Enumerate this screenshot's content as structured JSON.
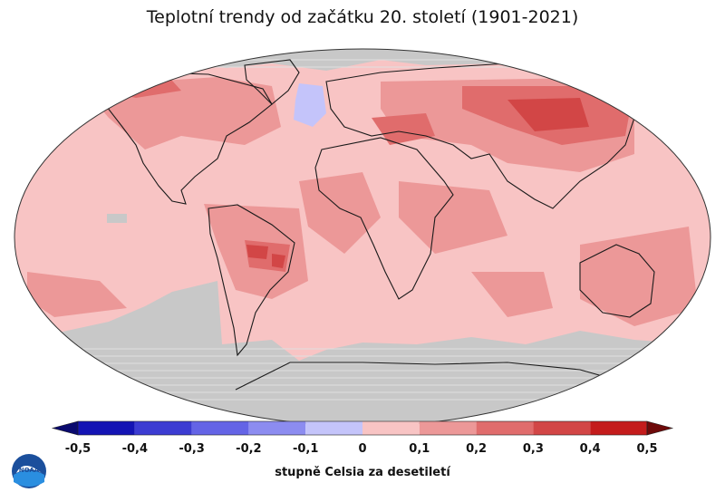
{
  "title": "Teplotní trendy od začátku 20. století (1901-2021)",
  "legend": {
    "unit_label": "stupně Celsia za desetiletí",
    "ticks": [
      "-0,5",
      "-0,4",
      "-0,3",
      "-0,2",
      "-0,1",
      "0",
      "0,1",
      "0,2",
      "0,3",
      "0,4",
      "0,5"
    ],
    "colors": [
      "#1414b4",
      "#3c3cd2",
      "#6464e6",
      "#8c8cf0",
      "#c4c4fa",
      "#f8c4c4",
      "#ec9898",
      "#e06c6c",
      "#d24646",
      "#c41c1c"
    ],
    "end_low": "#0a0a6e",
    "end_high": "#6e0a0a"
  },
  "map_colors": {
    "no_data": "#c8c8c8",
    "land_line": "#1a1a1a"
  },
  "logo": {
    "text": "NOAA"
  }
}
